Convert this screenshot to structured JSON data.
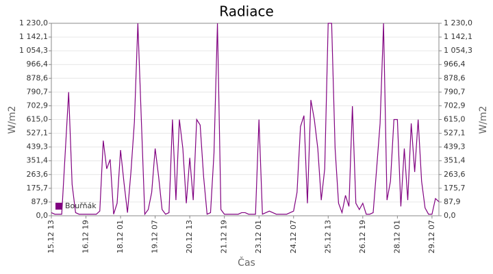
{
  "chart_data": {
    "type": "line",
    "title": "Radiace",
    "x_label": "Čas",
    "y_label": "W/m2",
    "y2_label": "W/m2",
    "categories": [
      "15.12 13",
      null,
      null,
      null,
      null,
      null,
      null,
      null,
      null,
      null,
      "16.12 19",
      null,
      null,
      null,
      null,
      null,
      null,
      null,
      null,
      null,
      "18.12 01",
      null,
      null,
      null,
      null,
      null,
      null,
      null,
      null,
      null,
      "19.12 07",
      null,
      null,
      null,
      null,
      null,
      null,
      null,
      null,
      null,
      "20.12 13",
      null,
      null,
      null,
      null,
      null,
      null,
      null,
      null,
      null,
      "21.12 19",
      null,
      null,
      null,
      null,
      null,
      null,
      null,
      null,
      null,
      "23.12 01",
      null,
      null,
      null,
      null,
      null,
      null,
      null,
      null,
      null,
      "24.12 07",
      null,
      null,
      null,
      null,
      null,
      null,
      null,
      null,
      null,
      "25.12 13",
      null,
      null,
      null,
      null,
      null,
      null,
      null,
      null,
      null,
      "26.12 19",
      null,
      null,
      null,
      null,
      null,
      null,
      null,
      null,
      null,
      "28.12 01",
      null,
      null,
      null,
      null,
      null,
      null,
      null,
      null,
      null,
      "29.12 07",
      null,
      null
    ],
    "series": [
      {
        "name": "Bouřňák",
        "color": "#800080",
        "values": [
          20,
          10,
          10,
          10,
          400,
          790,
          200,
          20,
          10,
          10,
          10,
          10,
          10,
          10,
          30,
          480,
          300,
          360,
          10,
          80,
          420,
          210,
          20,
          280,
          600,
          1230,
          615,
          10,
          40,
          150,
          430,
          250,
          40,
          10,
          20,
          615,
          100,
          615,
          430,
          80,
          370,
          100,
          615,
          580,
          250,
          10,
          20,
          400,
          1230,
          40,
          10,
          10,
          10,
          10,
          10,
          20,
          20,
          10,
          10,
          10,
          615,
          10,
          20,
          30,
          20,
          10,
          10,
          10,
          10,
          20,
          30,
          150,
          570,
          640,
          80,
          740,
          615,
          430,
          100,
          300,
          1230,
          1230,
          430,
          80,
          20,
          130,
          60,
          700,
          80,
          40,
          80,
          10,
          10,
          20,
          300,
          590,
          1230,
          100,
          220,
          615,
          615,
          60,
          430,
          100,
          590,
          280,
          615,
          220,
          50,
          10,
          10,
          110,
          90
        ]
      }
    ],
    "ylim": [
      0,
      1230
    ],
    "yticks": [
      {
        "value": 0,
        "label": "0,0"
      },
      {
        "value": 87.9,
        "label": "87,9"
      },
      {
        "value": 175.7,
        "label": "175,7"
      },
      {
        "value": 263.6,
        "label": "263,6"
      },
      {
        "value": 351.4,
        "label": "351,4"
      },
      {
        "value": 439.3,
        "label": "439,3"
      },
      {
        "value": 527.1,
        "label": "527,1"
      },
      {
        "value": 615,
        "label": "615,0"
      },
      {
        "value": 702.9,
        "label": "702,9"
      },
      {
        "value": 790.7,
        "label": "790,7"
      },
      {
        "value": 878.6,
        "label": "878,6"
      },
      {
        "value": 966.4,
        "label": "966,4"
      },
      {
        "value": 1054.3,
        "label": "1 054,3"
      },
      {
        "value": 1142.1,
        "label": "1 142,1"
      },
      {
        "value": 1230,
        "label": "1 230,0"
      }
    ],
    "y2lim": [
      0,
      1230
    ],
    "y2ticks": [
      {
        "value": 0,
        "label": "0,0"
      },
      {
        "value": 87.9,
        "label": "87,9"
      },
      {
        "value": 175.7,
        "label": "175,7"
      },
      {
        "value": 263.6,
        "label": "263,6"
      },
      {
        "value": 351.4,
        "label": "351,4"
      },
      {
        "value": 439.3,
        "label": "439,3"
      },
      {
        "value": 527.1,
        "label": "527,1"
      },
      {
        "value": 615,
        "label": "615,0"
      },
      {
        "value": 702.9,
        "label": "702,9"
      },
      {
        "value": 790.7,
        "label": "790,7"
      },
      {
        "value": 878.6,
        "label": "878,6"
      },
      {
        "value": 966.4,
        "label": "966,4"
      },
      {
        "value": 1054.3,
        "label": "1 054,3"
      },
      {
        "value": 1142.1,
        "label": "1 142,1"
      },
      {
        "value": 1230,
        "label": "1 230,0"
      }
    ],
    "grid": true,
    "legend": "lower left"
  }
}
